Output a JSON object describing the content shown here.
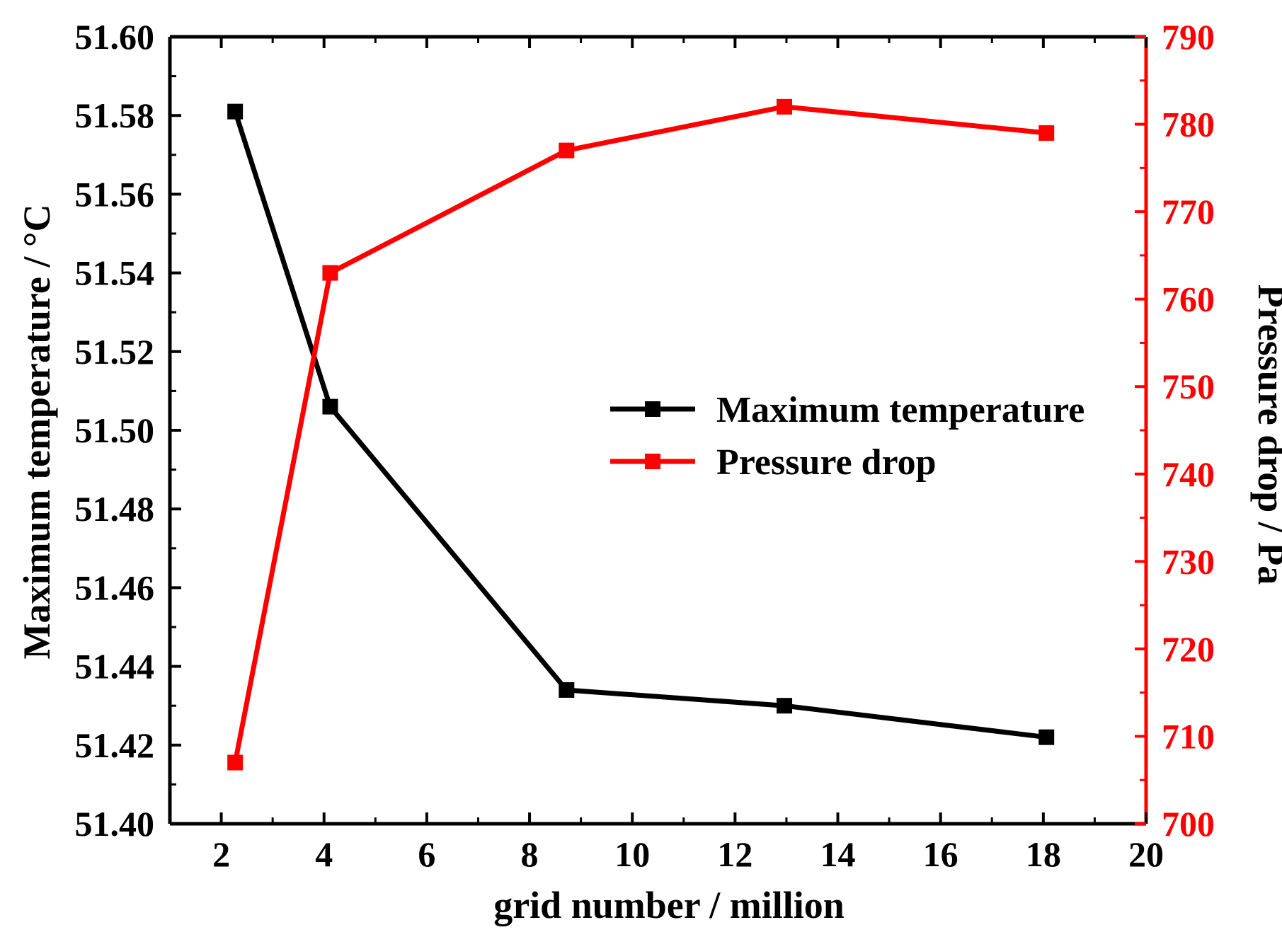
{
  "chart_data": {
    "type": "line",
    "xlabel": "grid number / million",
    "ylabel_left": "Maximum temperature / °C",
    "ylabel_right": "Pressure drop / Pa",
    "xlim": [
      1,
      20
    ],
    "x_ticks": [
      2,
      4,
      6,
      8,
      10,
      12,
      14,
      16,
      18,
      20
    ],
    "x_tick_labels": [
      "2",
      "4",
      "6",
      "8",
      "10",
      "12",
      "14",
      "16",
      "18",
      "20"
    ],
    "ylim_left": [
      51.4,
      51.6
    ],
    "y_left_ticks": [
      51.4,
      51.42,
      51.44,
      51.46,
      51.48,
      51.5,
      51.52,
      51.54,
      51.56,
      51.58,
      51.6
    ],
    "y_left_tick_labels": [
      "51.40",
      "51.42",
      "51.44",
      "51.46",
      "51.48",
      "51.50",
      "51.52",
      "51.54",
      "51.56",
      "51.58",
      "51.60"
    ],
    "ylim_right": [
      700,
      790
    ],
    "y_right_ticks": [
      700,
      710,
      720,
      730,
      740,
      750,
      760,
      770,
      780,
      790
    ],
    "y_right_tick_labels": [
      "700",
      "710",
      "720",
      "730",
      "740",
      "750",
      "760",
      "770",
      "780",
      "790"
    ],
    "legend_position": "center-right",
    "series": [
      {
        "name": "Maximum temperature",
        "axis": "left",
        "color": "#000000",
        "marker": "square",
        "x": [
          2.27,
          4.12,
          8.72,
          12.96,
          18.06
        ],
        "values": [
          51.581,
          51.506,
          51.434,
          51.43,
          51.422
        ]
      },
      {
        "name": "Pressure drop",
        "axis": "right",
        "color": "#ff0000",
        "marker": "square",
        "x": [
          2.27,
          4.12,
          8.72,
          12.96,
          18.06
        ],
        "values": [
          707,
          763,
          777,
          782,
          779
        ]
      }
    ]
  }
}
